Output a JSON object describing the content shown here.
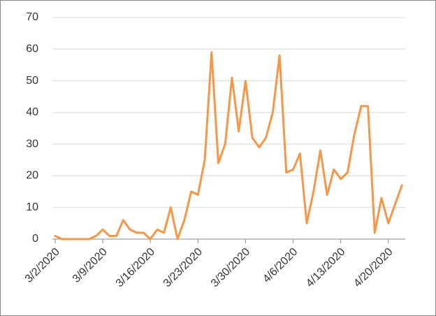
{
  "chart_data": {
    "type": "line",
    "categories": [
      "3/2/2020",
      null,
      null,
      null,
      null,
      null,
      null,
      "3/9/2020",
      null,
      null,
      null,
      null,
      null,
      null,
      "3/16/2020",
      null,
      null,
      null,
      null,
      null,
      null,
      "3/23/2020",
      null,
      null,
      null,
      null,
      null,
      null,
      "3/30/2020",
      null,
      null,
      null,
      null,
      null,
      null,
      "4/6/2020",
      null,
      null,
      null,
      null,
      null,
      null,
      "4/13/2020",
      null,
      null,
      null,
      null,
      null,
      null,
      "4/20/2020",
      null,
      null
    ],
    "series": [
      {
        "color": "#f79646",
        "values": [
          1,
          0,
          0,
          0,
          0,
          0,
          1,
          3,
          1,
          1,
          6,
          3,
          2,
          2,
          0,
          3,
          2,
          10,
          0,
          6,
          15,
          14,
          25,
          59,
          24,
          30,
          51,
          34,
          50,
          32,
          29,
          32,
          40,
          58,
          21,
          22,
          27,
          5,
          15,
          28,
          14,
          22,
          19,
          21,
          33,
          42,
          42,
          2,
          13,
          5,
          11,
          17
        ]
      }
    ],
    "ylim": [
      0,
      70
    ],
    "yticks": [
      0,
      10,
      20,
      30,
      40,
      50,
      60,
      70
    ],
    "grid": true
  }
}
